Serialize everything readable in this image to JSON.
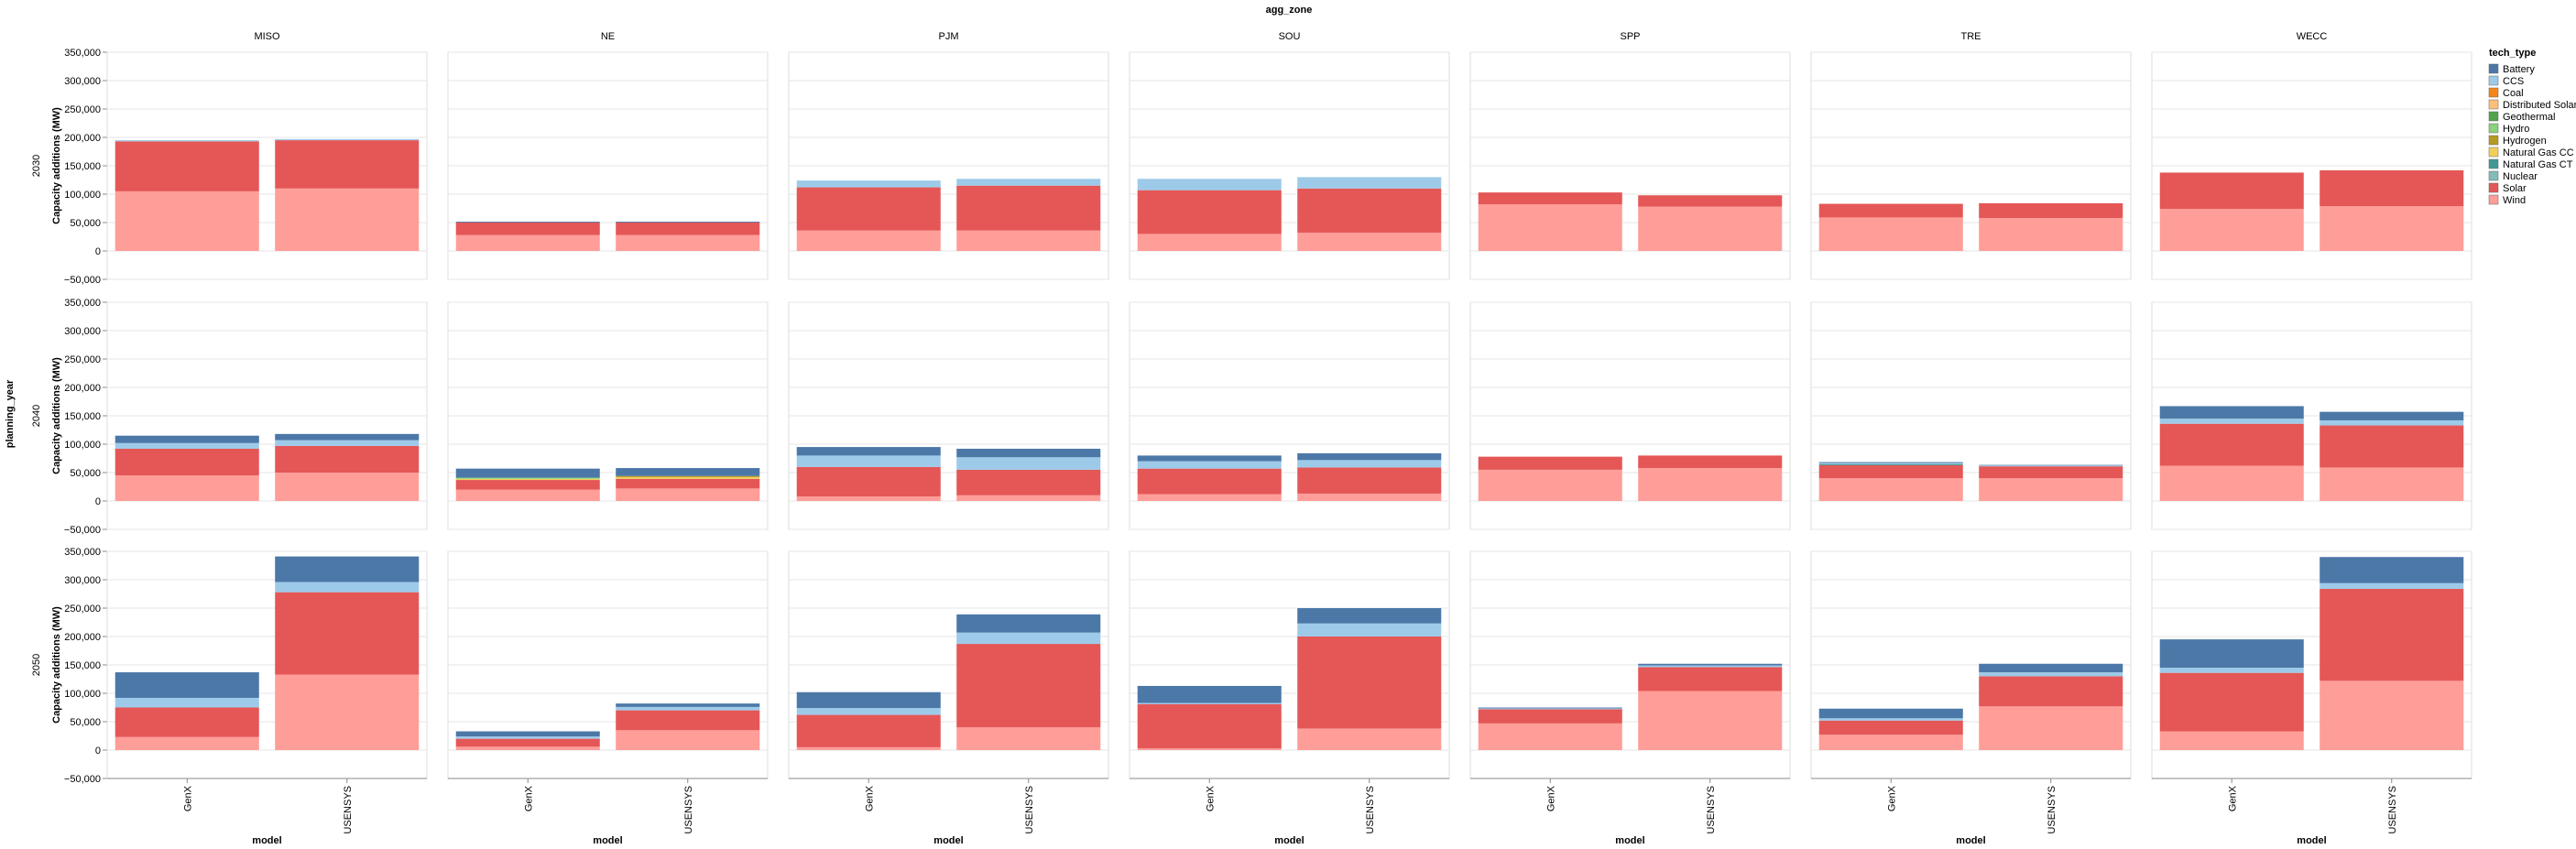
{
  "chart_data": {
    "type": "bar",
    "stacked": true,
    "facet_column_title": "agg_zone",
    "facet_row_title": "planning_year",
    "x_title": "model",
    "y_title": "Capacity additions (MW)",
    "zones": [
      "MISO",
      "NE",
      "PJM",
      "SOU",
      "SPP",
      "TRE",
      "WECC"
    ],
    "years": [
      "2030",
      "2040",
      "2050"
    ],
    "models": [
      "GenX",
      "USENSYS"
    ],
    "ylim": [
      -50000,
      350000
    ],
    "yticks": [
      -50000,
      0,
      50000,
      100000,
      150000,
      200000,
      250000,
      300000,
      350000
    ],
    "ytick_labels": [
      "−50,000",
      "0",
      "50,000",
      "100,000",
      "150,000",
      "200,000",
      "250,000",
      "300,000",
      "350,000"
    ],
    "grid": true,
    "legend_position": "right",
    "legend": {
      "title": "tech_type",
      "entries": [
        "Battery",
        "CCS",
        "Coal",
        "Distributed Solar",
        "Geothermal",
        "Hydro",
        "Hydrogen",
        "Natural Gas CC",
        "Natural Gas CT",
        "Nuclear",
        "Solar",
        "Wind"
      ],
      "colors": [
        "#4c78a8",
        "#9ecae9",
        "#f58518",
        "#ffbf79",
        "#54a24b",
        "#88d27a",
        "#b79a20",
        "#f2cf5b",
        "#439894",
        "#83bcb6",
        "#e45756",
        "#ff9d98"
      ]
    },
    "stack_order": [
      "Wind",
      "Solar",
      "Natural Gas CT",
      "Natural Gas CC",
      "Hydrogen",
      "Hydro",
      "Geothermal",
      "Distributed Solar",
      "Coal",
      "Nuclear",
      "CCS",
      "Battery"
    ],
    "data": {
      "2030": {
        "MISO": {
          "GenX": {
            "Wind": 105000,
            "Solar": 88000,
            "CCS": 2000
          },
          "USENSYS": {
            "Wind": 110000,
            "Solar": 85000,
            "CCS": 2000
          }
        },
        "NE": {
          "GenX": {
            "Wind": 28000,
            "Solar": 22000,
            "Battery": 1500
          },
          "USENSYS": {
            "Wind": 28000,
            "Solar": 22000,
            "Battery": 1500
          }
        },
        "PJM": {
          "GenX": {
            "Wind": 36000,
            "Solar": 76000,
            "CCS": 12000
          },
          "USENSYS": {
            "Wind": 36000,
            "Solar": 79000,
            "CCS": 12000
          }
        },
        "SOU": {
          "GenX": {
            "Wind": 30000,
            "Solar": 77000,
            "CCS": 20000
          },
          "USENSYS": {
            "Wind": 32000,
            "Solar": 78000,
            "CCS": 20000
          }
        },
        "SPP": {
          "GenX": {
            "Wind": 82000,
            "Solar": 21000
          },
          "USENSYS": {
            "Wind": 78000,
            "Solar": 20000
          }
        },
        "TRE": {
          "GenX": {
            "Wind": 59000,
            "Solar": 24000
          },
          "USENSYS": {
            "Wind": 58000,
            "Solar": 26000
          }
        },
        "WECC": {
          "GenX": {
            "Wind": 74000,
            "Solar": 64000
          },
          "USENSYS": {
            "Wind": 79000,
            "Solar": 63000
          }
        }
      },
      "2040": {
        "MISO": {
          "GenX": {
            "Wind": 45000,
            "Solar": 47000,
            "CCS": 10000,
            "Battery": 13000
          },
          "USENSYS": {
            "Wind": 50000,
            "Solar": 47000,
            "CCS": 10000,
            "Battery": 11000
          }
        },
        "NE": {
          "GenX": {
            "Wind": 20000,
            "Solar": 17000,
            "Hydro": 2000,
            "Natural Gas CC": 2000,
            "Battery": 16000
          },
          "USENSYS": {
            "Wind": 22000,
            "Solar": 17000,
            "Hydrogen": 2000,
            "Natural Gas CC": 3000,
            "Battery": 14000
          }
        },
        "PJM": {
          "GenX": {
            "Wind": 8000,
            "Solar": 52000,
            "CCS": 20000,
            "Battery": 15000
          },
          "USENSYS": {
            "Wind": 10000,
            "Solar": 45000,
            "CCS": 22000,
            "Battery": 15000
          }
        },
        "SOU": {
          "GenX": {
            "Wind": 12000,
            "Solar": 45000,
            "CCS": 13000,
            "Battery": 10000
          },
          "USENSYS": {
            "Wind": 13000,
            "Solar": 46000,
            "CCS": 13000,
            "Battery": 12000
          }
        },
        "SPP": {
          "GenX": {
            "Wind": 55000,
            "Solar": 23000
          },
          "USENSYS": {
            "Wind": 58000,
            "Solar": 22000
          }
        },
        "TRE": {
          "GenX": {
            "Wind": 40000,
            "Solar": 23000,
            "CCS": 2000,
            "Natural Gas CT": 2000,
            "Battery": 1500
          },
          "USENSYS": {
            "Wind": 40000,
            "Solar": 21000,
            "CCS": 1500,
            "Battery": 1000
          }
        },
        "WECC": {
          "GenX": {
            "Wind": 62000,
            "Solar": 74000,
            "CCS": 9000,
            "Battery": 22000
          },
          "USENSYS": {
            "Wind": 59000,
            "Solar": 74000,
            "CCS": 9000,
            "Battery": 15000
          }
        }
      },
      "2050": {
        "MISO": {
          "GenX": {
            "Wind": 23000,
            "Solar": 52000,
            "CCS": 17000,
            "Battery": 45000
          },
          "USENSYS": {
            "Wind": 133000,
            "Solar": 145000,
            "CCS": 18000,
            "Battery": 45000
          }
        },
        "NE": {
          "GenX": {
            "Wind": 6000,
            "Solar": 14000,
            "CCS": 4000,
            "Battery": 9000
          },
          "USENSYS": {
            "Wind": 35000,
            "Solar": 35000,
            "CCS": 6000,
            "Battery": 6000
          }
        },
        "PJM": {
          "GenX": {
            "Wind": 5000,
            "Solar": 57000,
            "CCS": 12000,
            "Battery": 28000
          },
          "USENSYS": {
            "Wind": 40000,
            "Solar": 147000,
            "CCS": 20000,
            "Battery": 32000
          }
        },
        "SOU": {
          "GenX": {
            "Wind": 3000,
            "Solar": 78000,
            "CCS": 2000,
            "Battery": 30000
          },
          "USENSYS": {
            "Wind": 38000,
            "Solar": 162000,
            "CCS": 23000,
            "Battery": 27000
          }
        },
        "SPP": {
          "GenX": {
            "Wind": 47000,
            "Solar": 25000,
            "CCS": 1500,
            "Battery": 1500
          },
          "USENSYS": {
            "Wind": 104000,
            "Solar": 42000,
            "CCS": 3000,
            "Battery": 3000
          }
        },
        "TRE": {
          "GenX": {
            "Wind": 27000,
            "Solar": 25000,
            "CCS": 4000,
            "Battery": 17000
          },
          "USENSYS": {
            "Wind": 77000,
            "Solar": 53000,
            "CCS": 7000,
            "Battery": 15000
          }
        },
        "WECC": {
          "GenX": {
            "Wind": 33000,
            "Solar": 103000,
            "CCS": 9000,
            "Battery": 50000
          },
          "USENSYS": {
            "Wind": 122000,
            "Solar": 162000,
            "CCS": 10000,
            "Battery": 46000
          }
        }
      }
    }
  }
}
